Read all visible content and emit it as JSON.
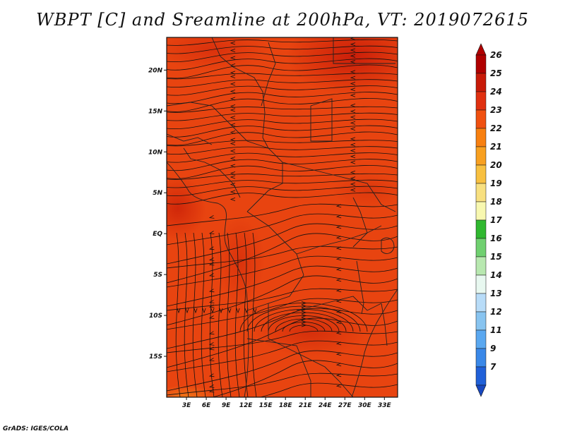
{
  "title": "WBPT [C] and Sreamline at 200hPa, VT: 2019072615",
  "credit": "GrADS: IGES/COLA",
  "map": {
    "field": "WBPT",
    "units": "C",
    "level": "200hPa",
    "valid_time": "2019072615",
    "lon_range": [
      0,
      35
    ],
    "lat_range": [
      -20,
      24
    ],
    "lat_ticks": [
      {
        "value": 20,
        "label": "20N"
      },
      {
        "value": 15,
        "label": "15N"
      },
      {
        "value": 10,
        "label": "10N"
      },
      {
        "value": 5,
        "label": "5N"
      },
      {
        "value": 0,
        "label": "EQ"
      },
      {
        "value": -5,
        "label": "5S"
      },
      {
        "value": -10,
        "label": "10S"
      },
      {
        "value": -15,
        "label": "15S"
      }
    ],
    "lon_ticks": [
      {
        "value": 3,
        "label": "3E"
      },
      {
        "value": 6,
        "label": "6E"
      },
      {
        "value": 9,
        "label": "9E"
      },
      {
        "value": 12,
        "label": "12E"
      },
      {
        "value": 15,
        "label": "15E"
      },
      {
        "value": 18,
        "label": "18E"
      },
      {
        "value": 21,
        "label": "21E"
      },
      {
        "value": 24,
        "label": "24E"
      },
      {
        "value": 27,
        "label": "27E"
      },
      {
        "value": 30,
        "label": "30E"
      },
      {
        "value": 33,
        "label": "33E"
      }
    ],
    "base_color": "#e84410",
    "warm_color": "#d42a08",
    "hot_color": "#c81a08",
    "streamline_color": "#111111",
    "border_color": "#222222"
  },
  "colorbar": {
    "levels": [
      {
        "label": "26",
        "color": "#b00000"
      },
      {
        "label": "25",
        "color": "#c81a08"
      },
      {
        "label": "24",
        "color": "#e03010"
      },
      {
        "label": "23",
        "color": "#f05010"
      },
      {
        "label": "22",
        "color": "#f88010"
      },
      {
        "label": "21",
        "color": "#f8a020"
      },
      {
        "label": "20",
        "color": "#f8c040"
      },
      {
        "label": "19",
        "color": "#f8e080"
      },
      {
        "label": "18",
        "color": "#f8f8b0"
      },
      {
        "label": "17",
        "color": "#30b830"
      },
      {
        "label": "16",
        "color": "#70d070"
      },
      {
        "label": "15",
        "color": "#b8e8b0"
      },
      {
        "label": "14",
        "color": "#e8f8f0"
      },
      {
        "label": "13",
        "color": "#b8dcf8"
      },
      {
        "label": "12",
        "color": "#88c4f0"
      },
      {
        "label": "11",
        "color": "#5aa8f0"
      },
      {
        "label": "9",
        "color": "#3a88e8"
      },
      {
        "label": "7",
        "color": "#2060d8"
      }
    ],
    "bottom_color": "#1848c0"
  }
}
